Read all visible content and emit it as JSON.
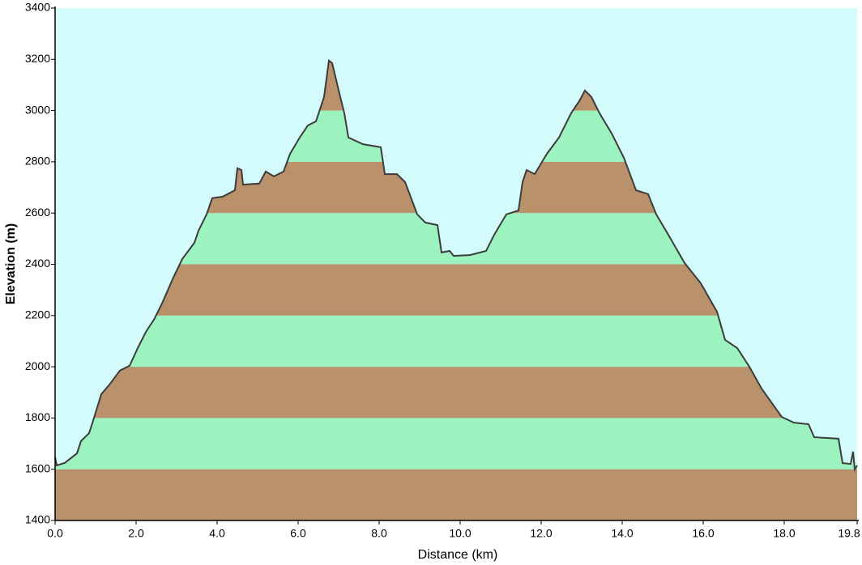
{
  "chart_data": {
    "type": "area",
    "xlabel": "Distance  (km)",
    "ylabel": "Elevation (m)",
    "xlim": [
      0,
      19.8
    ],
    "ylim": [
      1400,
      3400
    ],
    "xticks": [
      {
        "value": 0,
        "label": "0.0"
      },
      {
        "value": 2,
        "label": "2.0"
      },
      {
        "value": 4,
        "label": "4.0"
      },
      {
        "value": 6,
        "label": "6.0"
      },
      {
        "value": 8,
        "label": "8.0"
      },
      {
        "value": 10,
        "label": "10.0"
      },
      {
        "value": 12,
        "label": "12.0"
      },
      {
        "value": 14,
        "label": "14.0"
      },
      {
        "value": 16,
        "label": "16.0"
      },
      {
        "value": 18,
        "label": "18.0"
      },
      19.8
    ],
    "yticks": [
      1400,
      1600,
      1800,
      2000,
      2200,
      2400,
      2600,
      2800,
      3000,
      3200,
      3400
    ],
    "background": "#d3fbfb",
    "band_colors": [
      "#b9926b",
      "#9df3c0"
    ],
    "line_color": "#3c3c3c",
    "x": [
      0,
      0.04,
      0.24,
      0.54,
      0.64,
      0.84,
      0.94,
      1.14,
      1.34,
      1.6,
      1.84,
      2.04,
      2.24,
      2.44,
      2.64,
      2.9,
      3.14,
      3.44,
      3.54,
      3.74,
      3.88,
      4.14,
      4.44,
      4.5,
      4.6,
      4.64,
      5.04,
      5.2,
      5.4,
      5.64,
      5.8,
      6.04,
      6.24,
      6.44,
      6.64,
      6.76,
      6.84,
      7.04,
      7.14,
      7.24,
      7.6,
      8.04,
      8.14,
      8.44,
      8.64,
      8.94,
      9.14,
      9.44,
      9.54,
      9.74,
      9.84,
      10.24,
      10.64,
      10.84,
      11.14,
      11.44,
      11.54,
      11.64,
      11.84,
      12.14,
      12.44,
      12.74,
      12.94,
      13.08,
      13.24,
      13.44,
      13.74,
      14.04,
      14.34,
      14.64,
      14.84,
      15.14,
      15.54,
      15.94,
      16.34,
      16.54,
      16.84,
      17.14,
      17.44,
      17.94,
      18.24,
      18.6,
      18.74,
      19.34,
      19.44,
      19.64,
      19.7,
      19.74,
      19.8
    ],
    "values": [
      1646,
      1615,
      1625,
      1662,
      1710,
      1741,
      1790,
      1893,
      1930,
      1985,
      2004,
      2073,
      2136,
      2184,
      2247,
      2342,
      2421,
      2484,
      2531,
      2595,
      2658,
      2664,
      2689,
      2775,
      2768,
      2711,
      2715,
      2762,
      2743,
      2762,
      2831,
      2895,
      2942,
      2958,
      3053,
      3195,
      3185,
      3053,
      2990,
      2895,
      2869,
      2857,
      2752,
      2752,
      2721,
      2595,
      2563,
      2553,
      2446,
      2452,
      2433,
      2436,
      2452,
      2515,
      2595,
      2610,
      2721,
      2768,
      2752,
      2831,
      2895,
      2990,
      3037,
      3078,
      3053,
      2990,
      2911,
      2816,
      2689,
      2674,
      2595,
      2515,
      2405,
      2326,
      2215,
      2105,
      2073,
      2000,
      1915,
      1804,
      1782,
      1776,
      1725,
      1719,
      1624,
      1621,
      1669,
      1599,
      1615
    ]
  }
}
